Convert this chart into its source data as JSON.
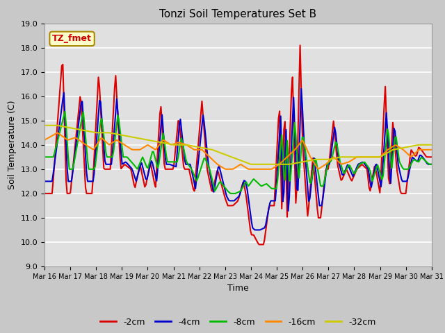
{
  "title": "Tonzi Soil Temperatures Set B",
  "xlabel": "Time",
  "ylabel": "Soil Temperature (C)",
  "ylim": [
    9.0,
    19.0
  ],
  "yticks": [
    9.0,
    10.0,
    11.0,
    12.0,
    13.0,
    14.0,
    15.0,
    16.0,
    17.0,
    18.0,
    19.0
  ],
  "fig_bg": "#c8c8c8",
  "ax_bg": "#e0e0e0",
  "annotation_text": "TZ_fmet",
  "annotation_color": "#cc0000",
  "annotation_bg": "#ffffcc",
  "annotation_border": "#aa8800",
  "series_names": [
    "-2cm",
    "-4cm",
    "-8cm",
    "-16cm",
    "-32cm"
  ],
  "series_colors": [
    "#dd0000",
    "#0000cc",
    "#00bb00",
    "#ff8800",
    "#cccc00"
  ],
  "series_lw": [
    1.5,
    1.5,
    1.5,
    1.5,
    1.5
  ],
  "x_start": 16,
  "x_end": 31,
  "xtick_positions": [
    16,
    17,
    18,
    19,
    20,
    21,
    22,
    23,
    24,
    25,
    26,
    27,
    28,
    29,
    30,
    31
  ],
  "xtick_labels": [
    "Mar 16",
    "Mar 17",
    "Mar 18",
    "Mar 19",
    "Mar 20",
    "Mar 21",
    "Mar 22",
    "Mar 23",
    "Mar 24",
    "Mar 25",
    "Mar 26",
    "Mar 27",
    "Mar 28",
    "Mar 29",
    "Mar 30",
    "Mar 31"
  ]
}
